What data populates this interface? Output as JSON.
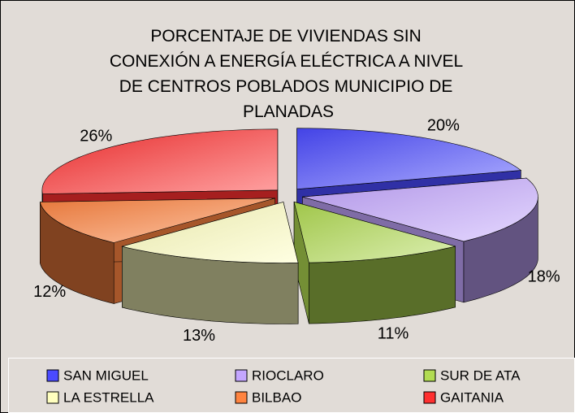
{
  "chart_data": {
    "type": "pie",
    "title": "PORCENTAJE DE VIVIENDAS SIN CONEXIÓN A ENERGÍA ELÉCTRICA A NIVEL DE CENTROS POBLADOS MUNICIPIO DE PLANADAS",
    "categories": [
      "SAN MIGUEL",
      "RIOCLARO",
      "SUR DE ATA",
      "LA ESTRELLA",
      "BILBAO",
      "GAITANIA"
    ],
    "values": [
      20,
      18,
      11,
      13,
      12,
      26
    ],
    "value_labels": [
      "20%",
      "18%",
      "11%",
      "13%",
      "12%",
      "26%"
    ],
    "colors": [
      "#4a4aff",
      "#c4a6ff",
      "#b2dc52",
      "#ffffbf",
      "#ff8440",
      "#ff3030"
    ],
    "legend": "bottom",
    "three_d": true,
    "exploded": true
  }
}
